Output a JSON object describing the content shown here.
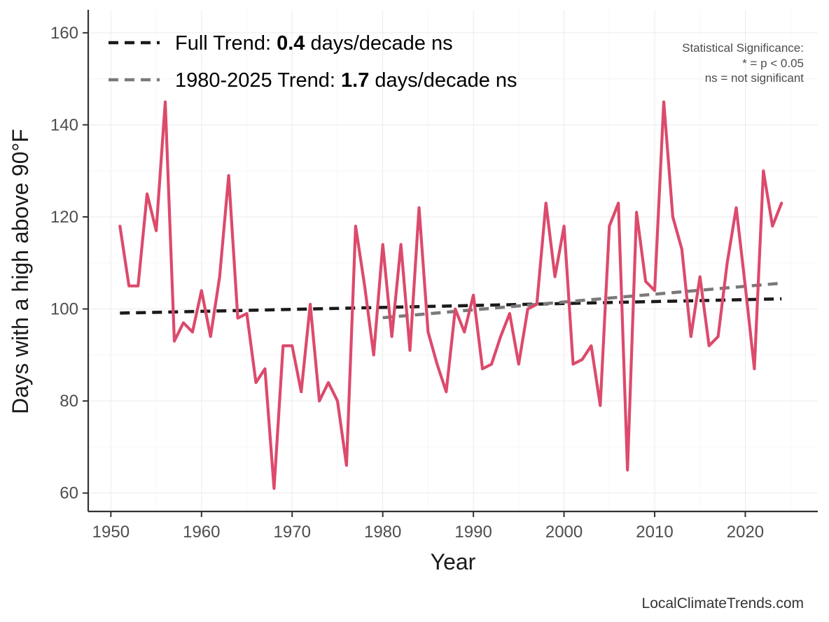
{
  "chart_data": {
    "type": "line",
    "xlabel": "Year",
    "ylabel": "Days with a high above 90°F",
    "xlim": [
      1947.5,
      2028
    ],
    "ylim": [
      56,
      165
    ],
    "xticks": [
      1950,
      1960,
      1970,
      1980,
      1990,
      2000,
      2010,
      2020
    ],
    "yticks": [
      60,
      80,
      100,
      120,
      140,
      160
    ],
    "grid": true,
    "series": [
      {
        "name": "Days above 90°F",
        "color": "#dc4a6c",
        "x": [
          1951,
          1952,
          1953,
          1954,
          1955,
          1956,
          1957,
          1958,
          1959,
          1960,
          1961,
          1962,
          1963,
          1964,
          1965,
          1966,
          1967,
          1968,
          1969,
          1970,
          1971,
          1972,
          1973,
          1974,
          1975,
          1976,
          1977,
          1978,
          1979,
          1980,
          1981,
          1982,
          1983,
          1984,
          1985,
          1986,
          1987,
          1988,
          1989,
          1990,
          1991,
          1992,
          1993,
          1994,
          1995,
          1996,
          1997,
          1998,
          1999,
          2000,
          2001,
          2002,
          2003,
          2004,
          2005,
          2006,
          2007,
          2008,
          2009,
          2010,
          2011,
          2012,
          2013,
          2014,
          2015,
          2016,
          2017,
          2018,
          2019,
          2020,
          2021,
          2022,
          2023,
          2024
        ],
        "values": [
          118,
          105,
          105,
          125,
          117,
          145,
          93,
          97,
          95,
          104,
          94,
          107,
          129,
          98,
          99,
          84,
          87,
          61,
          92,
          92,
          82,
          101,
          80,
          84,
          80,
          66,
          118,
          105,
          90,
          114,
          94,
          114,
          91,
          122,
          95,
          88,
          82,
          100,
          95,
          103,
          87,
          88,
          94,
          99,
          88,
          100,
          101,
          123,
          107,
          118,
          88,
          89,
          92,
          79,
          118,
          123,
          65,
          121,
          106,
          104,
          145,
          120,
          113,
          94,
          107,
          92,
          94,
          110,
          122,
          105,
          87,
          130,
          118,
          123
        ]
      }
    ],
    "trends": [
      {
        "name": "Full Trend",
        "label_prefix": "Full Trend: ",
        "value_text": "0.4",
        "suffix": " days/decade ns",
        "color": "#1a1a1a",
        "x": [
          1951,
          2024
        ],
        "values": [
          99.1,
          102.2
        ]
      },
      {
        "name": "1980-2025 Trend",
        "label_prefix": "1980-2025 Trend: ",
        "value_text": "1.7",
        "suffix": " days/decade ns",
        "color": "#7a7a7a",
        "x": [
          1980,
          2024
        ],
        "values": [
          98.1,
          105.6
        ]
      }
    ],
    "annotations": {
      "significance_lines": [
        "Statistical Significance:",
        "* = p < 0.05",
        "ns = not significant"
      ],
      "credit": "LocalClimateTrends.com"
    },
    "legend_position": "top-left"
  }
}
